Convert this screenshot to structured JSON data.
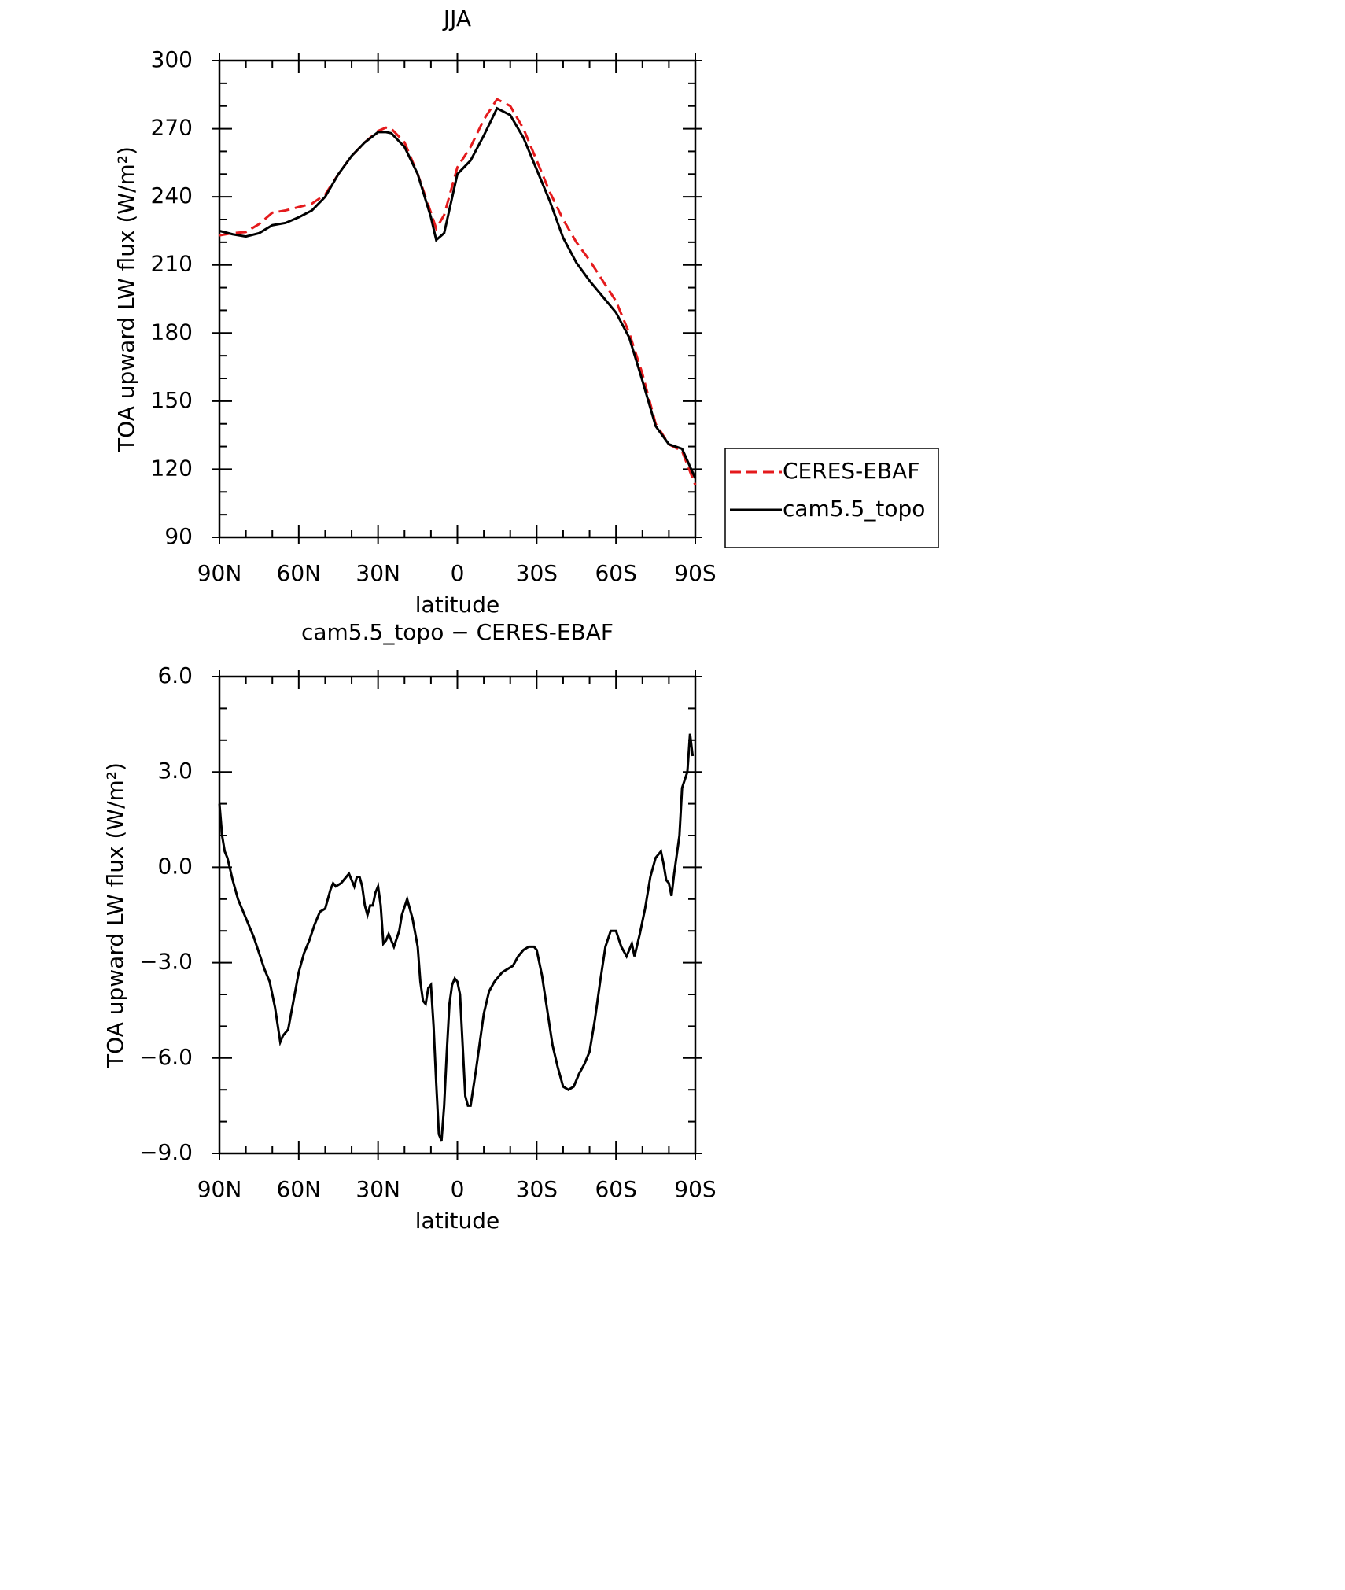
{
  "chart_data": [
    {
      "type": "line",
      "title": "JJA",
      "xlabel": "latitude",
      "ylabel": "TOA upward LW flux (W/m²)",
      "x": [
        90,
        85,
        80,
        75,
        70,
        65,
        60,
        55,
        50,
        45,
        40,
        35,
        30,
        27,
        25,
        20,
        15,
        10,
        8,
        5,
        0,
        -5,
        -10,
        -15,
        -20,
        -25,
        -30,
        -35,
        -40,
        -45,
        -50,
        -55,
        -60,
        -65,
        -70,
        -75,
        -80,
        -85,
        -90
      ],
      "series": [
        {
          "name": "CERES-EBAF",
          "color": "#e41a1c",
          "linestyle": "dashed",
          "values": [
            223,
            224,
            224.5,
            228,
            233,
            234,
            235.5,
            237,
            241,
            250,
            258,
            264,
            269,
            270.5,
            270,
            264,
            250,
            233,
            226,
            232,
            253,
            262,
            274,
            283,
            280,
            270,
            256,
            242,
            230,
            220,
            212,
            203,
            194,
            180,
            162,
            140,
            131,
            128,
            113
          ]
        },
        {
          "name": "cam5.5_topo",
          "color": "#000000",
          "linestyle": "solid",
          "values": [
            225,
            223.5,
            222.5,
            224,
            227.5,
            228.5,
            231,
            234,
            240,
            250,
            258,
            264,
            268.5,
            268.5,
            268,
            262,
            250,
            231,
            221,
            224,
            250,
            256,
            267,
            279,
            276,
            266,
            252,
            238,
            222,
            211,
            203,
            196,
            189,
            178,
            159,
            139,
            131,
            129,
            116
          ]
        }
      ],
      "xlim": [
        90,
        -90
      ],
      "xticks": [
        {
          "value": 90,
          "label": "90N"
        },
        {
          "value": 60,
          "label": "60N"
        },
        {
          "value": 30,
          "label": "30N"
        },
        0,
        {
          "value": -30,
          "label": "30S"
        },
        {
          "value": -60,
          "label": "60S"
        },
        {
          "value": -90,
          "label": "90S"
        }
      ],
      "ylim": [
        90,
        300
      ],
      "yticks": [
        90,
        120,
        150,
        180,
        210,
        240,
        270,
        300
      ],
      "legend": "right"
    },
    {
      "type": "line",
      "title": "cam5.5_topo − CERES-EBAF",
      "xlabel": "latitude",
      "ylabel": "TOA upward LW flux (W/m²)",
      "x": [
        90,
        89,
        88,
        87,
        85,
        83,
        80,
        77,
        75,
        73,
        71,
        69,
        67,
        66,
        64,
        62,
        60,
        58,
        56,
        54,
        52,
        50,
        48,
        47,
        46,
        44,
        42,
        41,
        40,
        39,
        38,
        37,
        36,
        35,
        34,
        33,
        32,
        31,
        30,
        29,
        28,
        27,
        26,
        24,
        22,
        21,
        19,
        17,
        15,
        14,
        13,
        12,
        11,
        10,
        9,
        8,
        7,
        6,
        5,
        4,
        3,
        2,
        1,
        0,
        -1,
        -2,
        -3,
        -4,
        -5,
        -7,
        -10,
        -12,
        -14,
        -16,
        -17,
        -19,
        -21,
        -23,
        -25,
        -27,
        -29,
        -30,
        -32,
        -34,
        -36,
        -38,
        -40,
        -42,
        -44,
        -46,
        -48,
        -50,
        -52,
        -54,
        -56,
        -58,
        -60,
        -62,
        -64,
        -66,
        -67,
        -69,
        -71,
        -73,
        -75,
        -77,
        -78,
        -79,
        -80,
        -81,
        -82,
        -84,
        -85,
        -87,
        -88,
        -89
      ],
      "color": "#000000",
      "values": [
        2.0,
        1.0,
        0.5,
        0.3,
        -0.4,
        -1.0,
        -1.6,
        -2.2,
        -2.7,
        -3.2,
        -3.6,
        -4.4,
        -5.5,
        -5.3,
        -5.1,
        -4.2,
        -3.3,
        -2.7,
        -2.3,
        -1.8,
        -1.4,
        -1.3,
        -0.7,
        -0.5,
        -0.6,
        -0.5,
        -0.3,
        -0.2,
        -0.4,
        -0.6,
        -0.3,
        -0.3,
        -0.6,
        -1.2,
        -1.5,
        -1.2,
        -1.2,
        -0.8,
        -0.6,
        -1.2,
        -2.4,
        -2.3,
        -2.1,
        -2.5,
        -2.0,
        -1.5,
        -1.0,
        -1.6,
        -2.5,
        -3.6,
        -4.2,
        -4.3,
        -3.8,
        -3.7,
        -5.0,
        -6.8,
        -8.4,
        -8.6,
        -7.5,
        -5.8,
        -4.3,
        -3.7,
        -3.5,
        -3.6,
        -4.0,
        -5.6,
        -7.2,
        -7.5,
        -7.5,
        -6.4,
        -4.6,
        -3.9,
        -3.6,
        -3.4,
        -3.3,
        -3.2,
        -3.1,
        -2.8,
        -2.6,
        -2.5,
        -2.5,
        -2.6,
        -3.4,
        -4.5,
        -5.6,
        -6.3,
        -6.9,
        -7.0,
        -6.9,
        -6.5,
        -6.2,
        -5.8,
        -4.8,
        -3.6,
        -2.5,
        -2.0,
        -2.0,
        -2.5,
        -2.8,
        -2.4,
        -2.8,
        -2.1,
        -1.3,
        -0.3,
        0.3,
        0.5,
        0.1,
        -0.4,
        -0.5,
        -0.9,
        -0.2,
        1.0,
        2.5,
        3.0,
        4.2,
        3.5
      ],
      "xlim": [
        90,
        -90
      ],
      "xticks": [
        {
          "value": 90,
          "label": "90N"
        },
        {
          "value": 60,
          "label": "60N"
        },
        {
          "value": 30,
          "label": "30N"
        },
        0,
        {
          "value": -30,
          "label": "30S"
        },
        {
          "value": -60,
          "label": "60S"
        },
        {
          "value": -90,
          "label": "90S"
        }
      ],
      "ylim": [
        -9,
        6
      ],
      "yticks": [
        {
          "value": -9,
          "label": "−9.0"
        },
        {
          "value": -6,
          "label": "−6.0"
        },
        {
          "value": -3,
          "label": "−3.0"
        },
        {
          "value": 0,
          "label": "0.0"
        },
        {
          "value": 3,
          "label": "3.0"
        },
        {
          "value": 6,
          "label": "6.0"
        }
      ]
    }
  ]
}
